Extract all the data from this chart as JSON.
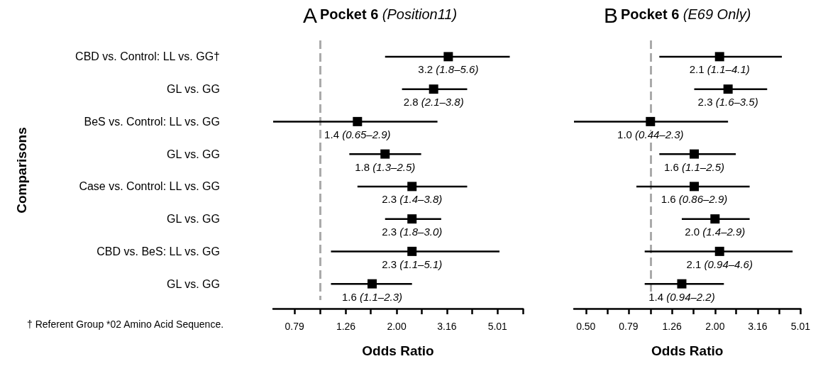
{
  "chart_data": [
    {
      "type": "scatter",
      "title": "Pocket 6 (Position11)",
      "xlabel": "Odds Ratio",
      "ylabel": "Comparisons",
      "orientation": "horizontal",
      "log": "x",
      "grid": false,
      "marker": "square",
      "color": "#000000",
      "categories": [
        "CBD vs. Control: LL vs. GG†",
        "GL vs. GG",
        "BeS vs. Control: LL vs. GG",
        "GL vs. GG",
        "Case vs. Control: LL vs. GG",
        "GL vs. GG",
        "CBD vs. BeS: LL vs. GG",
        "GL vs. GG"
      ],
      "values": [
        3.2,
        2.8,
        1.4,
        1.8,
        2.3,
        2.3,
        2.3,
        1.6
      ],
      "errors": [
        [
          1.8,
          5.6
        ],
        [
          2.1,
          3.8
        ],
        [
          0.65,
          2.9
        ],
        [
          1.3,
          2.5
        ],
        [
          1.4,
          3.8
        ],
        [
          1.8,
          3.0
        ],
        [
          1.1,
          5.1
        ],
        [
          1.1,
          2.3
        ]
      ],
      "value_labels": [
        "3.2 (1.8–5.6)",
        "2.8 (2.1–3.8)",
        "1.4 (0.65–2.9)",
        "1.8 (1.3–2.5)",
        "2.3 (1.4–3.8)",
        "2.3 (1.8–3.0)",
        "2.3 (1.1–5.1)",
        "1.6 (1.1–2.3)"
      ],
      "xlim": [
        0.65,
        6.31
      ],
      "xticks": [
        0.79,
        {
          "value": 1.0,
          "label": null
        },
        1.26,
        {
          "value": 1.58,
          "label": null
        },
        {
          "value": 2,
          "label": "2.00"
        },
        {
          "value": 2.51,
          "label": null
        },
        3.16,
        {
          "value": 3.98,
          "label": null
        },
        5.01,
        {
          "value": 6.31,
          "label": null
        }
      ],
      "ref_lines": [
        {
          "axis": "x",
          "value": 1,
          "color": "#aaaaaa",
          "line_style": "dashed"
        }
      ],
      "annotations": [
        "A",
        "† Referent Group *02 Amino Acid Sequence."
      ]
    },
    {
      "type": "scatter",
      "title": "Pocket 6 (E69 Only)",
      "xlabel": "Odds Ratio",
      "orientation": "horizontal",
      "log": "x",
      "grid": false,
      "marker": "square",
      "color": "#000000",
      "tick_labels": "x",
      "values": [
        2.1,
        2.3,
        1.0,
        1.6,
        1.6,
        2.0,
        2.1,
        1.4
      ],
      "categories": [
        null,
        null,
        null,
        null,
        null,
        null,
        null,
        null
      ],
      "errors": [
        [
          1.1,
          4.1
        ],
        [
          1.6,
          3.5
        ],
        [
          0.44,
          2.3
        ],
        [
          1.1,
          2.5
        ],
        [
          0.86,
          2.9
        ],
        [
          1.4,
          2.9
        ],
        [
          0.94,
          4.6
        ],
        [
          0.94,
          2.2
        ]
      ],
      "value_labels": [
        "2.1 (1.1–4.1)",
        "2.3 (1.6–3.5)",
        "1.0 (0.44–2.3)",
        "1.6 (1.1–2.5)",
        "1.6 (0.86–2.9)",
        "2.0 (1.4–2.9)",
        "2.1 (0.94–4.6)",
        "1.4 (0.94–2.2)"
      ],
      "xlim": [
        0.44,
        5.01
      ],
      "xticks": [
        {
          "value": 0.5,
          "label": "0.50"
        },
        {
          "value": 0.63,
          "label": null
        },
        0.79,
        {
          "value": 1.0,
          "label": null
        },
        1.26,
        {
          "value": 1.58,
          "label": null
        },
        {
          "value": 2,
          "label": "2.00"
        },
        {
          "value": 2.51,
          "label": null
        },
        3.16,
        {
          "value": 3.98,
          "label": null
        },
        5.01
      ],
      "ref_lines": [
        {
          "axis": "x",
          "value": 1,
          "color": "#aaaaaa",
          "line_style": "dashed"
        }
      ],
      "annotations": [
        "B"
      ]
    }
  ]
}
